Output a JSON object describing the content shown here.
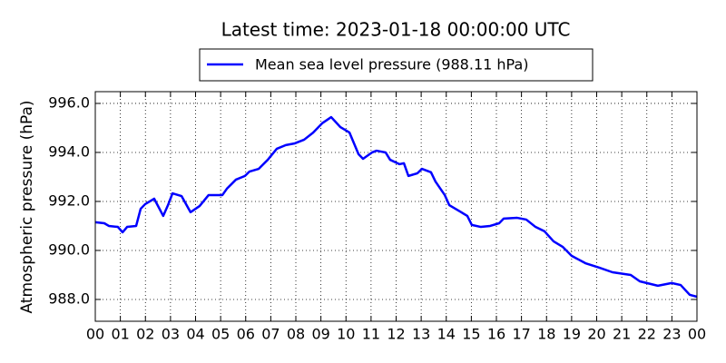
{
  "chart_data": {
    "type": "line",
    "title": "Latest time: 2023-01-18 00:00:00 UTC",
    "y_label": "Atmospheric pressure (hPa)",
    "legend": "upper center",
    "grid": true,
    "x": [
      0.0,
      0.36,
      0.54,
      0.9,
      1.09,
      1.27,
      1.63,
      1.81,
      1.99,
      2.35,
      2.71,
      2.9,
      3.08,
      3.44,
      3.8,
      4.16,
      4.52,
      5.07,
      5.25,
      5.61,
      5.97,
      6.15,
      6.52,
      6.88,
      7.24,
      7.6,
      7.96,
      8.33,
      8.69,
      9.05,
      9.41,
      9.77,
      10.14,
      10.32,
      10.5,
      10.68,
      11.04,
      11.22,
      11.58,
      11.76,
      12.13,
      12.31,
      12.49,
      12.85,
      13.03,
      13.39,
      13.57,
      13.94,
      14.12,
      14.48,
      14.84,
      15.02,
      15.38,
      15.75,
      16.11,
      16.29,
      16.83,
      17.19,
      17.56,
      17.92,
      18.28,
      18.64,
      19.0,
      19.55,
      20.09,
      20.63,
      21.36,
      21.72,
      22.44,
      22.99,
      23.35,
      23.71,
      24.0
    ],
    "series": [
      {
        "name": "Mean sea level pressure (988.11 hPa)",
        "color": "#0000ff",
        "values": [
          991.15,
          991.11,
          991.0,
          990.96,
          990.74,
          990.96,
          991.0,
          991.7,
          991.89,
          992.11,
          991.41,
          991.85,
          992.33,
          992.22,
          991.56,
          991.81,
          992.26,
          992.26,
          992.52,
          992.89,
          993.04,
          993.22,
          993.33,
          993.7,
          994.15,
          994.3,
          994.37,
          994.52,
          994.81,
          995.19,
          995.44,
          995.04,
          994.81,
          994.37,
          993.93,
          993.74,
          994.0,
          994.07,
          994.0,
          993.7,
          993.52,
          993.56,
          993.04,
          993.15,
          993.33,
          993.19,
          992.81,
          992.26,
          991.85,
          991.63,
          991.41,
          991.04,
          990.96,
          991.0,
          991.11,
          991.3,
          991.33,
          991.26,
          990.96,
          990.78,
          990.37,
          990.15,
          989.78,
          989.48,
          989.3,
          989.11,
          989.0,
          988.74,
          988.56,
          988.67,
          988.59,
          988.19,
          988.11
        ]
      }
    ],
    "xlim": [
      0,
      24
    ],
    "xticks": [
      {
        "value": 0,
        "label": "00"
      },
      {
        "value": 1,
        "label": "01"
      },
      {
        "value": 2,
        "label": "02"
      },
      {
        "value": 3,
        "label": "03"
      },
      {
        "value": 4,
        "label": "04"
      },
      {
        "value": 5,
        "label": "05"
      },
      {
        "value": 6,
        "label": "06"
      },
      {
        "value": 7,
        "label": "07"
      },
      {
        "value": 8,
        "label": "08"
      },
      {
        "value": 9,
        "label": "09"
      },
      {
        "value": 10,
        "label": "10"
      },
      {
        "value": 11,
        "label": "11"
      },
      {
        "value": 12,
        "label": "12"
      },
      {
        "value": 13,
        "label": "13"
      },
      {
        "value": 14,
        "label": "14"
      },
      {
        "value": 15,
        "label": "15"
      },
      {
        "value": 16,
        "label": "16"
      },
      {
        "value": 17,
        "label": "17"
      },
      {
        "value": 18,
        "label": "18"
      },
      {
        "value": 19,
        "label": "19"
      },
      {
        "value": 20,
        "label": "20"
      },
      {
        "value": 21,
        "label": "21"
      },
      {
        "value": 22,
        "label": "22"
      },
      {
        "value": 23,
        "label": "23"
      },
      {
        "value": 24,
        "label": "00"
      }
    ],
    "ylim": [
      987.11,
      996.48
    ],
    "yticks": [
      {
        "value": 988,
        "label": "988.0"
      },
      {
        "value": 990,
        "label": "990.0"
      },
      {
        "value": 992,
        "label": "992.0"
      },
      {
        "value": 994,
        "label": "994.0"
      },
      {
        "value": 996,
        "label": "996.0"
      }
    ]
  }
}
